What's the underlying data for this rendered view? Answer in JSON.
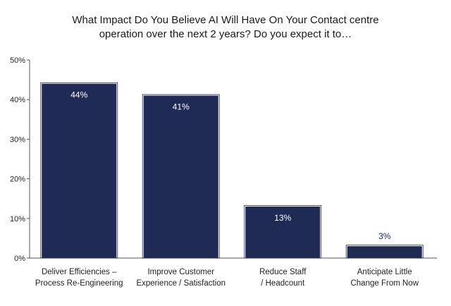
{
  "chart_data": {
    "type": "bar",
    "title_lines": [
      "What Impact Do You Believe AI Will Have On Your Contact centre",
      "operation over the next 2 years? Do you expect it to…"
    ],
    "categories": [
      [
        "Deliver Efficiencies –",
        "Process Re-Engineering"
      ],
      [
        "Improve Customer",
        "Experience / Satisfaction"
      ],
      [
        "Reduce Staff",
        "/ Headcount"
      ],
      [
        "Anticipate Little",
        "Change From Now"
      ]
    ],
    "values": [
      44,
      41,
      13,
      3
    ],
    "data_labels": [
      "44%",
      "41%",
      "13%",
      "3%"
    ],
    "y_ticks": [
      "0%",
      "10%",
      "20%",
      "30%",
      "40%",
      "50%"
    ],
    "ylim": [
      0,
      50
    ],
    "bar_color": "#1f2a55",
    "label_color_inside": "#ffffff",
    "label_color_outside": "#1f2a55"
  }
}
